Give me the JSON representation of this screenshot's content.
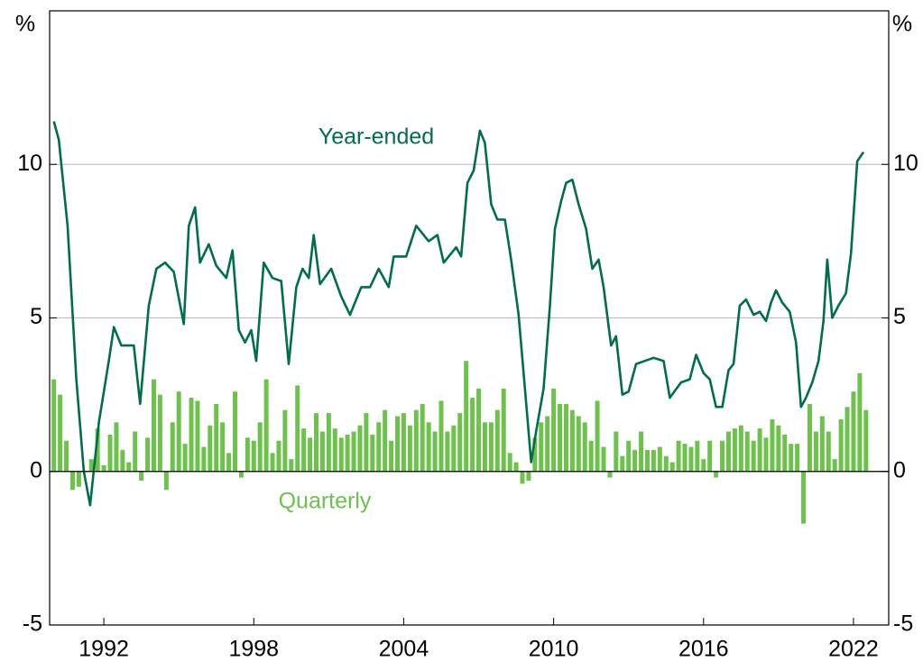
{
  "chart_data": {
    "type": "bar-line",
    "ylabel": "%",
    "y2label": "%",
    "xlim": [
      1989.83,
      2023.41
    ],
    "xticks": [
      1992,
      1998,
      2004,
      2010,
      2016,
      2022
    ],
    "ylim": [
      -5,
      15
    ],
    "yticks": [
      -5,
      0,
      5,
      10
    ],
    "y2lim": [
      -5,
      15
    ],
    "y2ticks": [
      -5,
      0,
      5,
      10
    ],
    "grid": true,
    "series": [
      {
        "name": "Quarterly",
        "type": "bar",
        "color": "#6cc24a",
        "x": [
          1990,
          1990.25,
          1990.5,
          1990.75,
          1991,
          1991.25,
          1991.5,
          1991.75,
          1992,
          1992.25,
          1992.5,
          1992.75,
          1993,
          1993.25,
          1993.5,
          1993.75,
          1994,
          1994.25,
          1994.5,
          1994.75,
          1995,
          1995.25,
          1995.5,
          1995.75,
          1996,
          1996.25,
          1996.5,
          1996.75,
          1997,
          1997.25,
          1997.5,
          1997.75,
          1998,
          1998.25,
          1998.5,
          1998.75,
          1999,
          1999.25,
          1999.5,
          1999.75,
          2000,
          2000.25,
          2000.5,
          2000.75,
          2001,
          2001.25,
          2001.5,
          2001.75,
          2002,
          2002.25,
          2002.5,
          2002.75,
          2003,
          2003.25,
          2003.5,
          2003.75,
          2004,
          2004.25,
          2004.5,
          2004.75,
          2005,
          2005.25,
          2005.5,
          2005.75,
          2006,
          2006.25,
          2006.5,
          2006.75,
          2007,
          2007.25,
          2007.5,
          2007.75,
          2008,
          2008.25,
          2008.5,
          2008.75,
          2009,
          2009.25,
          2009.5,
          2009.75,
          2010,
          2010.25,
          2010.5,
          2010.75,
          2011,
          2011.25,
          2011.5,
          2011.75,
          2012,
          2012.25,
          2012.5,
          2012.75,
          2013,
          2013.25,
          2013.5,
          2013.75,
          2014,
          2014.25,
          2014.5,
          2014.75,
          2015,
          2015.25,
          2015.5,
          2015.75,
          2016,
          2016.25,
          2016.5,
          2016.75,
          2017,
          2017.25,
          2017.5,
          2017.75,
          2018,
          2018.25,
          2018.5,
          2018.75,
          2019,
          2019.25,
          2019.5,
          2019.75,
          2020,
          2020.25,
          2020.5,
          2020.75,
          2021,
          2021.25,
          2021.5,
          2021.75,
          2022,
          2022.25,
          2022.5
        ],
        "values": [
          3.0,
          2.5,
          1.0,
          -0.6,
          -0.5,
          0.0,
          0.4,
          1.4,
          0.2,
          1.2,
          1.6,
          0.7,
          0.3,
          1.3,
          -0.3,
          1.1,
          3.0,
          2.5,
          -0.6,
          1.6,
          2.6,
          0.9,
          2.4,
          2.3,
          0.8,
          1.5,
          2.2,
          1.6,
          0.6,
          2.6,
          -0.2,
          1.1,
          1.0,
          1.6,
          3.0,
          0.6,
          1.0,
          2.0,
          0.4,
          2.8,
          1.4,
          1.1,
          1.9,
          1.3,
          1.9,
          1.4,
          1.1,
          1.2,
          1.3,
          1.5,
          1.9,
          1.2,
          1.6,
          2.0,
          1.0,
          1.8,
          1.9,
          1.5,
          2.0,
          2.2,
          1.6,
          1.3,
          2.3,
          1.3,
          1.5,
          1.9,
          3.6,
          2.4,
          2.7,
          1.6,
          1.6,
          2.0,
          2.7,
          0.6,
          0.3,
          -0.4,
          -0.3,
          1.1,
          1.6,
          1.8,
          2.7,
          2.2,
          2.2,
          2.0,
          1.8,
          1.6,
          1.0,
          2.3,
          0.8,
          -0.2,
          1.3,
          0.5,
          1.0,
          0.7,
          1.3,
          0.7,
          0.7,
          0.8,
          0.5,
          0.3,
          1.0,
          0.9,
          0.8,
          1.0,
          0.4,
          1.0,
          -0.2,
          1.0,
          1.3,
          1.4,
          1.5,
          1.3,
          1.0,
          1.4,
          1.1,
          1.7,
          1.5,
          1.2,
          0.9,
          0.9,
          -1.7,
          2.2,
          1.3,
          1.8,
          1.3,
          0.4,
          1.7,
          2.1,
          2.6,
          3.2,
          2.0
        ]
      },
      {
        "name": "Year-ended",
        "type": "line",
        "color": "#006f48",
        "x": [
          1990.0,
          1990.2,
          1990.55,
          1990.9,
          1991.2,
          1991.45,
          1991.8,
          1992.2,
          1992.4,
          1992.7,
          1993.2,
          1993.45,
          1993.8,
          1994.1,
          1994.45,
          1994.8,
          1995.2,
          1995.4,
          1995.65,
          1995.85,
          1996.2,
          1996.5,
          1996.9,
          1997.15,
          1997.4,
          1997.65,
          1997.9,
          1998.1,
          1998.4,
          1998.75,
          1999.1,
          1999.4,
          1999.7,
          1999.95,
          2000.2,
          2000.4,
          2000.65,
          2001.1,
          2001.5,
          2001.85,
          2002.3,
          2002.65,
          2003.0,
          2003.4,
          2003.6,
          2004.1,
          2004.5,
          2005.0,
          2005.35,
          2005.6,
          2006.1,
          2006.3,
          2006.55,
          2006.8,
          2007.05,
          2007.25,
          2007.5,
          2007.75,
          2008.05,
          2008.3,
          2008.6,
          2008.85,
          2009.1,
          2009.3,
          2009.6,
          2009.85,
          2010.05,
          2010.3,
          2010.5,
          2010.75,
          2011.0,
          2011.3,
          2011.55,
          2011.8,
          2012.0,
          2012.3,
          2012.5,
          2012.75,
          2013.0,
          2013.3,
          2013.65,
          2014.0,
          2014.4,
          2014.65,
          2015.1,
          2015.45,
          2015.7,
          2016.0,
          2016.25,
          2016.5,
          2016.75,
          2017.0,
          2017.2,
          2017.45,
          2017.7,
          2018.0,
          2018.25,
          2018.5,
          2018.7,
          2018.9,
          2019.15,
          2019.45,
          2019.7,
          2019.9,
          2020.1,
          2020.35,
          2020.6,
          2020.8,
          2020.95,
          2021.15,
          2021.4,
          2021.7,
          2021.9,
          2022.15,
          2022.4
        ],
        "values": [
          11.4,
          10.8,
          8,
          3,
          0,
          -1.1,
          1.6,
          3.6,
          4.7,
          4.1,
          4.1,
          2.2,
          5.4,
          6.6,
          6.8,
          6.5,
          4.8,
          8.0,
          8.6,
          6.8,
          7.4,
          6.7,
          6.3,
          7.2,
          4.6,
          4.2,
          4.6,
          3.6,
          6.8,
          6.3,
          6.2,
          3.5,
          6.0,
          6.6,
          6.3,
          7.7,
          6.1,
          6.6,
          5.7,
          5.1,
          6.0,
          6.0,
          6.6,
          6.0,
          7.0,
          7.0,
          8.0,
          7.5,
          7.7,
          6.8,
          7.3,
          7.0,
          9.4,
          9.8,
          11.1,
          10.7,
          8.7,
          8.2,
          8.2,
          6.9,
          5.1,
          2.7,
          0.3,
          1.3,
          2.7,
          5.4,
          7.9,
          8.8,
          9.4,
          9.5,
          8.7,
          7.9,
          6.6,
          6.9,
          6.0,
          4.1,
          4.4,
          2.5,
          2.6,
          3.5,
          3.6,
          3.7,
          3.6,
          2.4,
          2.9,
          3.0,
          3.8,
          3.2,
          3.0,
          2.1,
          2.1,
          3.3,
          3.5,
          5.4,
          5.6,
          5.1,
          5.2,
          4.9,
          5.5,
          5.9,
          5.5,
          5.2,
          4.2,
          2.1,
          2.4,
          2.9,
          3.6,
          4.9,
          6.9,
          5.0,
          5.4,
          5.8,
          7.1,
          10.1,
          10.4
        ]
      }
    ]
  }
}
